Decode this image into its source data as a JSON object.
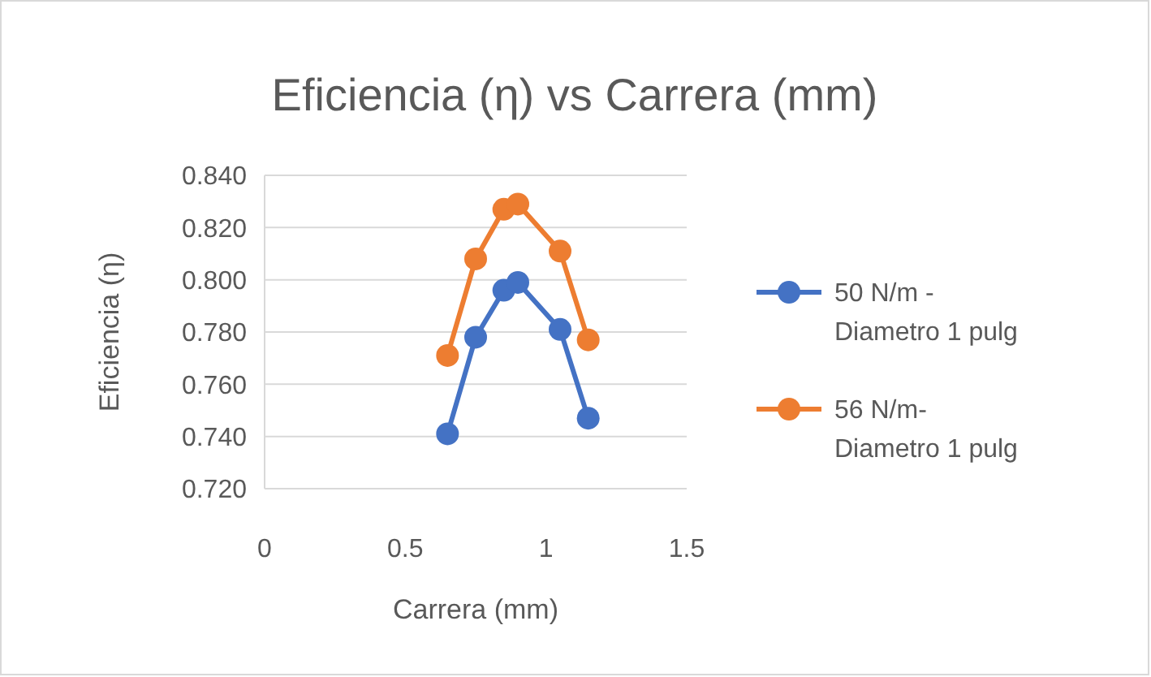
{
  "chart_data": {
    "type": "line",
    "title": "Eficiencia  (η) vs Carrera (mm)",
    "xlabel": "Carrera (mm)",
    "ylabel": "Eficiencia  (η)",
    "x": [
      0.65,
      0.75,
      0.85,
      0.9,
      1.05,
      1.15
    ],
    "series": [
      {
        "name": "50 N/m - Diametro 1 pulg",
        "color": "#4472c4",
        "values": [
          0.741,
          0.778,
          0.796,
          0.799,
          0.781,
          0.747
        ]
      },
      {
        "name": "56 N/m- Diametro 1 pulg",
        "color": "#ed7d31",
        "values": [
          0.771,
          0.808,
          0.827,
          0.829,
          0.811,
          0.777
        ]
      }
    ],
    "xlim": [
      0,
      1.5
    ],
    "xticks": [
      {
        "value": 0,
        "label": "0"
      },
      {
        "value": 0.5,
        "label": "0.5"
      },
      {
        "value": 1,
        "label": "1"
      },
      {
        "value": 1.5,
        "label": "1.5"
      }
    ],
    "ylim": [
      0.72,
      0.84
    ],
    "yticks": [
      {
        "value": 0.72,
        "label": "0.720"
      },
      {
        "value": 0.74,
        "label": "0.740"
      },
      {
        "value": 0.76,
        "label": "0.760"
      },
      {
        "value": 0.78,
        "label": "0.780"
      },
      {
        "value": 0.8,
        "label": "0.800"
      },
      {
        "value": 0.82,
        "label": "0.820"
      },
      {
        "value": 0.84,
        "label": "0.840"
      }
    ],
    "grid": "y",
    "legend": "right",
    "marker": "circle",
    "line_style": "solid"
  }
}
